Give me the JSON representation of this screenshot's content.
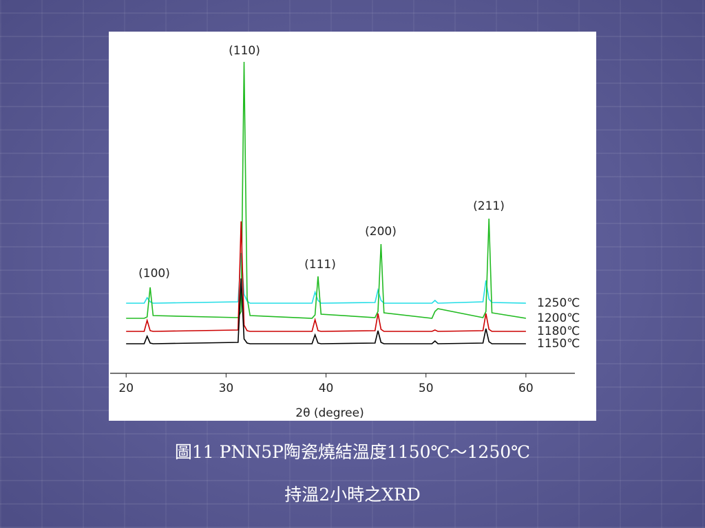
{
  "chart_data": {
    "type": "line",
    "caption": [
      "圖11 PNN5P陶瓷燒結溫度1150℃～1250℃",
      "持溫2小時之XRD"
    ],
    "xlabel": "2θ (degree)",
    "xlim": [
      18.4,
      64.9
    ],
    "xticks": [
      20,
      30,
      40,
      50,
      60
    ],
    "ylim": [
      0,
      497
    ],
    "x": [
      20,
      21.8,
      22.1,
      22.4,
      22.7,
      31.2,
      31.5,
      31.8,
      32.1,
      32.4,
      38.6,
      38.9,
      39.2,
      39.5,
      44.9,
      45.2,
      45.5,
      45.8,
      50.6,
      50.9,
      51.2,
      55.7,
      56.0,
      56.3,
      56.6,
      60
    ],
    "series": [
      {
        "name": "1250℃",
        "color": "#22dde6",
        "values": [
          102,
          102,
          110,
          104,
          102,
          104,
          175,
          115,
          105,
          102,
          102,
          118,
          106,
          102,
          103,
          121,
          106,
          102,
          102,
          106,
          102,
          104,
          135,
          108,
          103,
          102
        ]
      },
      {
        "name": "1200℃",
        "color": "#22bb22",
        "values": [
          80,
          80,
          82,
          125,
          84,
          81,
          90,
          453,
          110,
          84,
          80,
          85,
          141,
          86,
          81,
          90,
          188,
          88,
          80,
          90,
          94,
          81,
          90,
          225,
          88,
          80
        ]
      },
      {
        "name": "1180℃",
        "color": "#cc0000",
        "values": [
          61,
          61,
          77,
          62,
          61,
          63,
          221,
          70,
          62,
          61,
          61,
          78,
          62,
          61,
          62,
          87,
          64,
          61,
          61,
          63,
          61,
          62,
          87,
          64,
          61,
          61
        ]
      },
      {
        "name": "1150℃",
        "color": "#000000",
        "values": [
          43,
          43,
          54,
          44,
          43,
          45,
          138,
          50,
          44,
          43,
          43,
          56,
          44,
          43,
          44,
          62,
          45,
          43,
          43,
          47,
          43,
          44,
          65,
          46,
          43,
          43
        ]
      }
    ],
    "annotations": [
      "(100)",
      "(110)",
      "(111)",
      "(200)",
      "(211)"
    ]
  }
}
